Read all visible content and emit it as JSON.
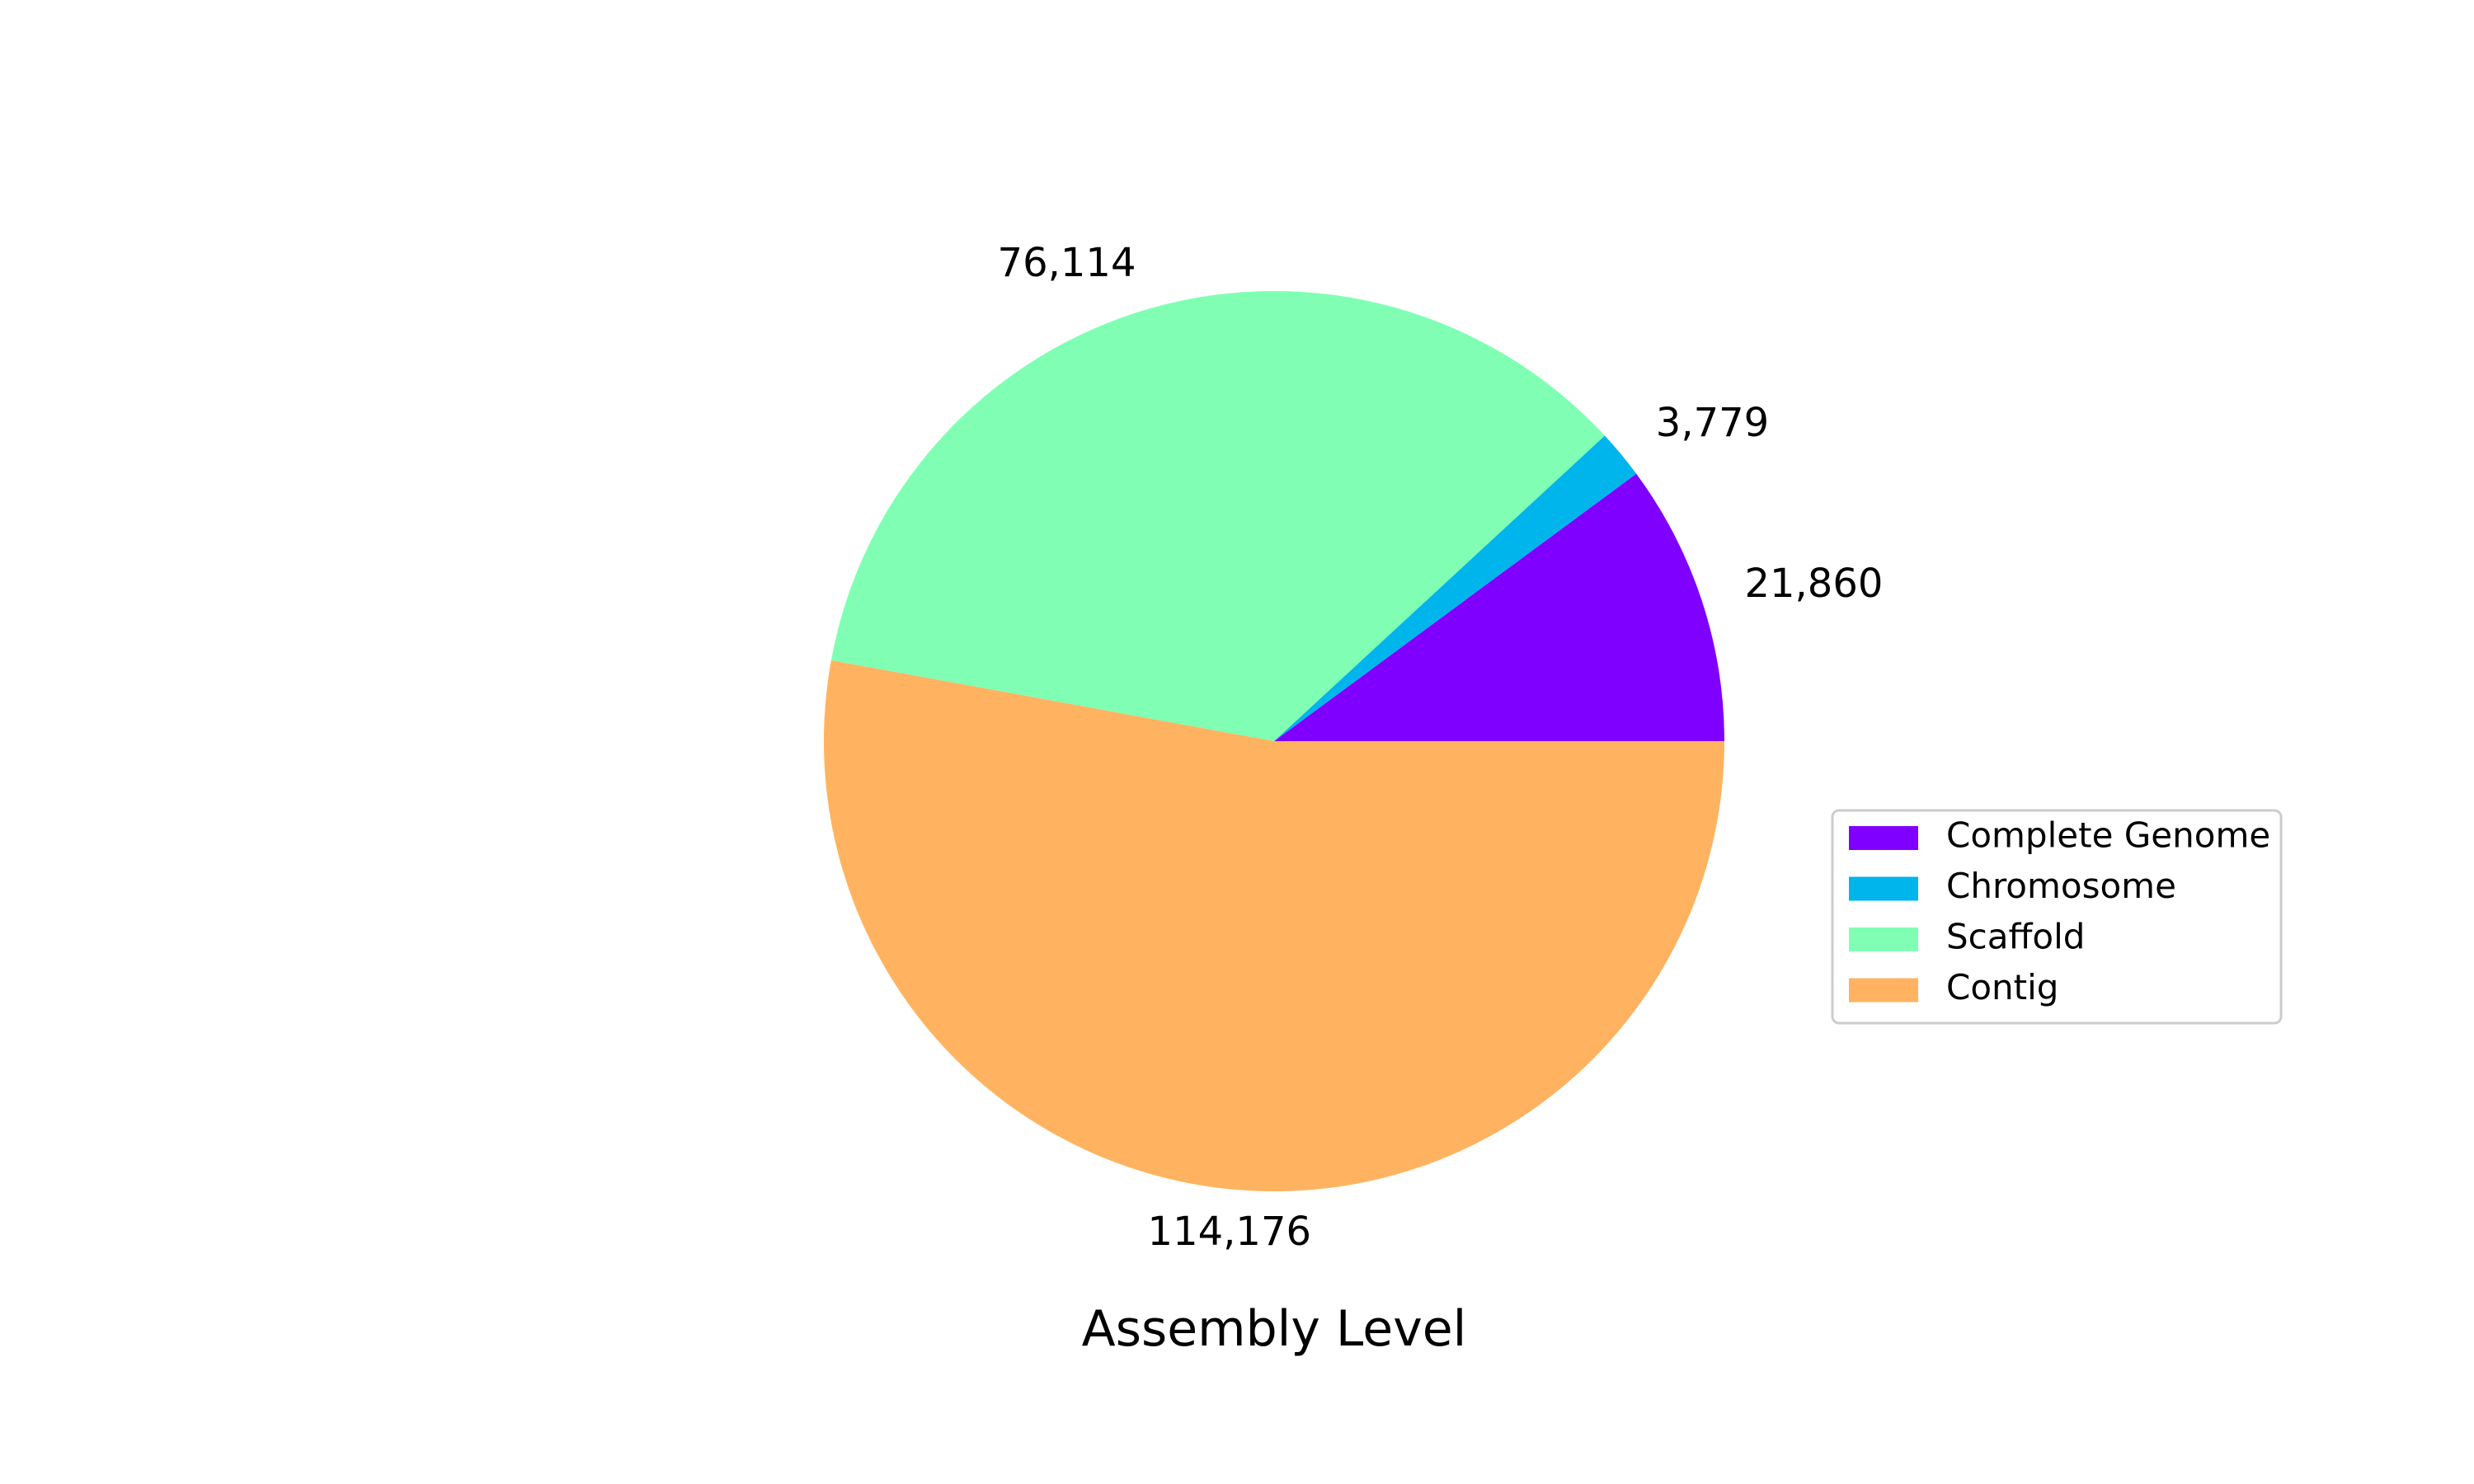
{
  "chart_data": {
    "type": "pie",
    "title": "Assembly Level",
    "categories": [
      "Complete Genome",
      "Chromosome",
      "Scaffold",
      "Contig"
    ],
    "values": [
      21860,
      3779,
      76114,
      114176
    ],
    "value_labels": [
      "21,860",
      "3,779",
      "76,114",
      "114,176"
    ],
    "colors": [
      "#8000ff",
      "#00b5eb",
      "#80ffb4",
      "#ffb360"
    ],
    "start_angle_deg": 0,
    "direction": "counterclockwise",
    "legend": {
      "placement": "right",
      "entries": [
        "Complete Genome",
        "Chromosome",
        "Scaffold",
        "Contig"
      ]
    }
  }
}
